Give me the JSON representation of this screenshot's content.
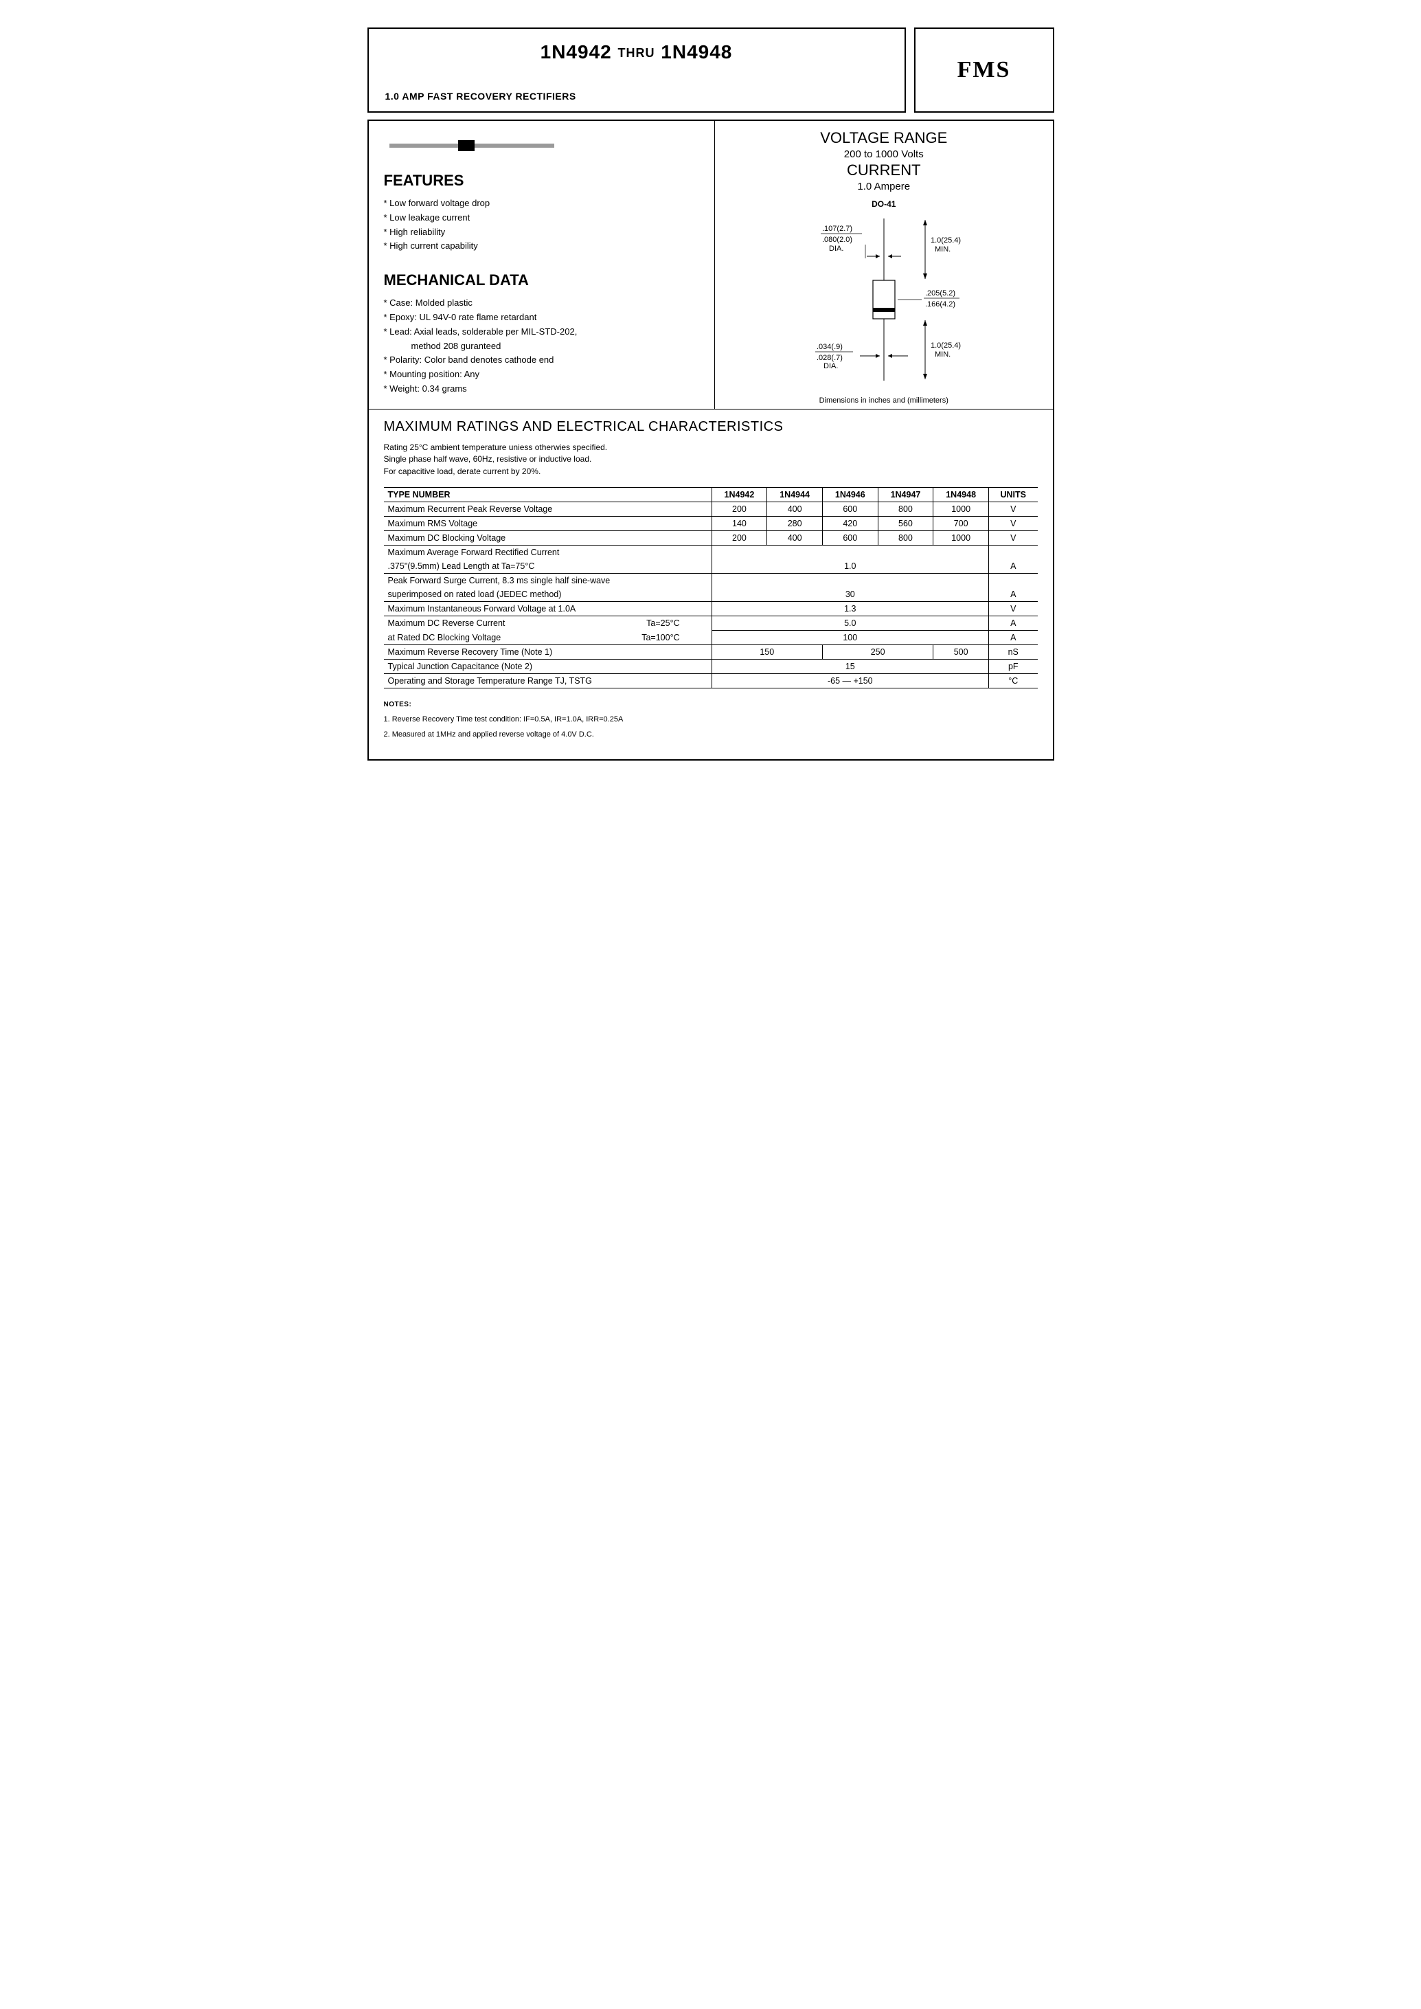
{
  "header": {
    "title_left": "1N4942",
    "title_mid": "THRU",
    "title_right": "1N4948",
    "subtitle": "1.0 AMP FAST RECOVERY RECTIFIERS",
    "logo": "FMS"
  },
  "features": {
    "heading": "FEATURES",
    "items": [
      "Low forward voltage drop",
      "Low leakage current",
      "High reliability",
      "High current capability"
    ]
  },
  "mechanical": {
    "heading": "MECHANICAL DATA",
    "items": [
      "Case: Molded plastic",
      "Epoxy: UL 94V-0 rate flame retardant",
      "Lead: Axial leads, solderable per MIL-STD-202, method 208 guranteed",
      "Polarity: Color band denotes cathode end",
      "Mounting position: Any",
      "Weight: 0.34 grams"
    ]
  },
  "voltage_block": {
    "vr_head": "VOLTAGE RANGE",
    "vr_sub": "200 to 1000 Volts",
    "cur_head": "CURRENT",
    "cur_sub": "1.0 Ampere"
  },
  "package_drawing": {
    "name": "DO-41",
    "dims": {
      "lead_dia_top": ".107(2.7)",
      "lead_dia_bot": ".080(2.0)",
      "lead_dia_label": "DIA.",
      "lead_len_top": "1.0(25.4)",
      "lead_len_label_top": "MIN.",
      "body_dia_top": ".205(5.2)",
      "body_dia_bot": ".166(4.2)",
      "lead_dia2_top": ".034(.9)",
      "lead_dia2_bot": ".028(.7)",
      "lead_dia2_label": "DIA.",
      "lead_len_bot": "1.0(25.4)",
      "lead_len_label_bot": "MIN."
    },
    "caption": "Dimensions in inches and (millimeters)"
  },
  "ratings": {
    "title": "MAXIMUM RATINGS AND ELECTRICAL CHARACTERISTICS",
    "conditions": [
      "Rating 25°C ambient temperature uniess otherwies specified.",
      "Single phase half wave, 60Hz, resistive or inductive load.",
      "For capacitive load, derate current by 20%."
    ],
    "type_label": "TYPE NUMBER",
    "types": [
      "1N4942",
      "1N4944",
      "1N4946",
      "1N4947",
      "1N4948"
    ],
    "units_label": "UNITS",
    "rows": [
      {
        "label": "Maximum Recurrent Peak Reverse Voltage",
        "vals": [
          "200",
          "400",
          "600",
          "800",
          "1000"
        ],
        "unit": "V"
      },
      {
        "label": "Maximum RMS Voltage",
        "vals": [
          "140",
          "280",
          "420",
          "560",
          "700"
        ],
        "unit": "V"
      },
      {
        "label": "Maximum DC Blocking Voltage",
        "vals": [
          "200",
          "400",
          "600",
          "800",
          "1000"
        ],
        "unit": "V"
      }
    ],
    "avg_fwd": {
      "line1": "Maximum Average Forward Rectified Current",
      "line2": ".375\"(9.5mm) Lead Length at Ta=75°C",
      "val": "1.0",
      "unit": "A"
    },
    "surge": {
      "line1": "Peak Forward Surge Current, 8.3 ms single half sine-wave",
      "line2": "superimposed on rated load (JEDEC method)",
      "val": "30",
      "unit": "A"
    },
    "vf": {
      "label": "Maximum Instantaneous Forward Voltage at 1.0A",
      "val": "1.3",
      "unit": "V"
    },
    "ir": {
      "line1": "Maximum DC Reverse Current",
      "ta1": "Ta=25°C",
      "val1": "5.0",
      "unit1": "A",
      "line2": "at Rated DC Blocking Voltage",
      "ta2": "Ta=100°C",
      "val2": "100",
      "unit2": "A"
    },
    "trr": {
      "label": "Maximum Reverse Recovery Time (Note 1)",
      "vals": [
        "150",
        "250",
        "500"
      ],
      "unit": "nS"
    },
    "cj": {
      "label": "Typical Junction Capacitance (Note 2)",
      "val": "15",
      "unit": "pF"
    },
    "temp": {
      "label": "Operating and Storage Temperature Range TJ, TSTG",
      "val": "-65 — +150",
      "unit": "°C"
    }
  },
  "notes": {
    "heading": "NOTES:",
    "items": [
      "1. Reverse Recovery Time test condition: IF=0.5A, IR=1.0A, IRR=0.25A",
      "2. Measured at 1MHz and applied reverse voltage of 4.0V D.C."
    ]
  }
}
